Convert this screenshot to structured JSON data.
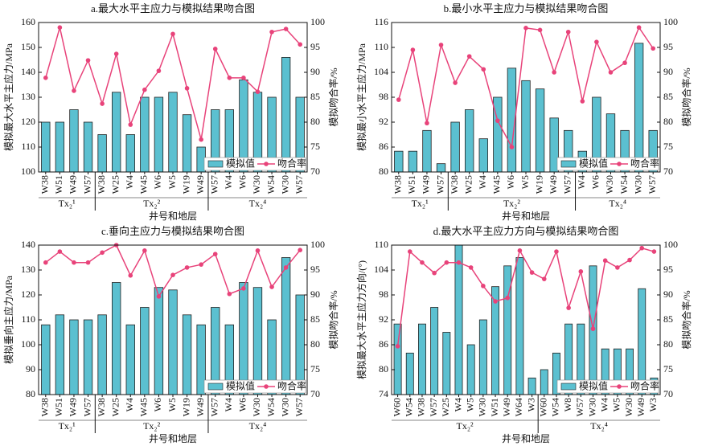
{
  "chart_data": [
    {
      "type": "bar",
      "title": "a.最大水平主应力与模拟结果吻合图",
      "x_label": "井号和地层",
      "y_label": "模拟最大水平主应力/MPa",
      "y2_label": "模拟吻合率/%",
      "groups": [
        {
          "label": "Tx₂¹",
          "categories": [
            "W38",
            "W51",
            "W49",
            "W57"
          ]
        },
        {
          "label": "Tx₂²",
          "categories": [
            "W38",
            "W25",
            "W4",
            "W45",
            "W6",
            "W5",
            "W19",
            "W49"
          ]
        },
        {
          "label": "Tx₂⁴",
          "categories": [
            "W57",
            "W4",
            "W6",
            "W30",
            "W54",
            "W30",
            "W57"
          ]
        }
      ],
      "series": [
        {
          "name": "模拟值",
          "color": "#5bc0d0",
          "values": [
            120,
            120,
            125,
            120,
            115,
            132,
            115,
            130,
            130,
            132,
            123,
            110,
            125,
            125,
            137,
            132,
            130,
            146,
            130
          ]
        },
        {
          "name": "吻合率",
          "color": "#e8437a",
          "type": "line",
          "axis": "y2",
          "values": [
            88.9,
            99,
            86.3,
            92.4,
            83.7,
            93.7,
            79.5,
            86.5,
            90.3,
            97.7,
            86.8,
            76.5,
            94.7,
            88.9,
            88.9,
            86.1,
            98.1,
            98.7,
            95.6
          ]
        }
      ],
      "ylim": [
        100,
        160
      ],
      "yticks": [
        100,
        110,
        120,
        130,
        140,
        150,
        160
      ],
      "y2lim": [
        70,
        100
      ],
      "y2ticks": [
        70,
        75,
        80,
        85,
        90,
        95,
        100
      ],
      "legend": "lower right"
    },
    {
      "type": "bar",
      "title": "b.最小水平主应力与模拟结果吻合图",
      "x_label": "井号和地层",
      "y_label": "模拟最小水平主应力/MPa",
      "y2_label": "模拟吻合率/%",
      "groups": [
        {
          "label": "Tx₂¹",
          "categories": [
            "W38",
            "W51",
            "W49",
            "W57"
          ]
        },
        {
          "label": "Tx₂²",
          "categories": [
            "W38",
            "W25",
            "W4",
            "W45",
            "W6",
            "W5",
            "W19",
            "W49",
            "W57"
          ]
        },
        {
          "label": "Tx₂⁴",
          "categories": [
            "W4",
            "W6",
            "W30",
            "W54",
            "W30",
            "W57"
          ]
        }
      ],
      "series": [
        {
          "name": "模拟值",
          "color": "#5bc0d0",
          "values": [
            85,
            85,
            90,
            82,
            92,
            95,
            88,
            98,
            105,
            102,
            100,
            93,
            90,
            85,
            98,
            94,
            90,
            111,
            90
          ]
        },
        {
          "name": "吻合率",
          "color": "#e8437a",
          "type": "line",
          "axis": "y2",
          "values": [
            84.5,
            94.5,
            79.8,
            95.5,
            87.9,
            93.2,
            90.6,
            80.3,
            75,
            98.9,
            98.5,
            90,
            98.1,
            84.2,
            96.1,
            90,
            91.9,
            99,
            94.8
          ]
        }
      ],
      "ylim": [
        80,
        116
      ],
      "yticks": [
        80,
        86,
        92,
        98,
        104,
        110,
        116
      ],
      "y2lim": [
        70,
        100
      ],
      "y2ticks": [
        70,
        75,
        80,
        85,
        90,
        95,
        100
      ],
      "legend": "lower right"
    },
    {
      "type": "bar",
      "title": "c.垂向主应力与模拟结果吻合图",
      "x_label": "井号和地层",
      "y_label": "模拟垂向主应力/MPa",
      "y2_label": "模拟吻合率/%",
      "groups": [
        {
          "label": "Tx₂¹",
          "categories": [
            "W38",
            "W51",
            "W49",
            "W57"
          ]
        },
        {
          "label": "Tx₂²",
          "categories": [
            "W38",
            "W25",
            "W4",
            "W45",
            "W6",
            "W5",
            "W19",
            "W49"
          ]
        },
        {
          "label": "Tx₂⁴",
          "categories": [
            "W57",
            "W4",
            "W6",
            "W30",
            "W54",
            "W30",
            "W57"
          ]
        }
      ],
      "series": [
        {
          "name": "模拟值",
          "color": "#5bc0d0",
          "values": [
            108,
            112,
            110,
            110,
            112,
            125,
            108,
            115,
            123,
            122,
            112,
            108,
            115,
            108,
            125,
            123,
            110,
            135,
            120
          ]
        },
        {
          "name": "吻合率",
          "color": "#e8437a",
          "type": "line",
          "axis": "y2",
          "values": [
            96.5,
            98.7,
            96.5,
            96.5,
            98.5,
            100,
            93.9,
            98.9,
            89.7,
            94,
            95.5,
            96.1,
            98.2,
            90.2,
            91.3,
            98.9,
            91.6,
            95.5,
            99
          ]
        }
      ],
      "ylim": [
        80,
        140
      ],
      "yticks": [
        80,
        90,
        100,
        110,
        120,
        130,
        140
      ],
      "y2lim": [
        70,
        100
      ],
      "y2ticks": [
        70,
        75,
        80,
        85,
        90,
        95,
        100
      ],
      "legend": "lower right"
    },
    {
      "type": "bar",
      "title": "d.最大水平主应力方向与模拟结果吻合图",
      "x_label": "井号和地层",
      "y_label": "模拟最大水平主应力方向/(°)",
      "y2_label": "模拟吻合率/%",
      "groups": [
        {
          "label": "Tx₂²",
          "categories": [
            "W60",
            "W54",
            "W38",
            "W57",
            "W25",
            "W4",
            "W5",
            "W30",
            "W51",
            "W49",
            "W64",
            "W3"
          ]
        },
        {
          "label": "Tx₂⁴",
          "categories": [
            "W60",
            "W54",
            "W8",
            "W57",
            "W30",
            "W4",
            "W5",
            "W30",
            "W49",
            "W3"
          ]
        }
      ],
      "series": [
        {
          "name": "模拟值",
          "color": "#5bc0d0",
          "values": [
            91,
            84,
            91,
            95,
            89,
            110,
            86,
            92,
            100,
            105,
            107,
            78,
            80,
            84,
            91,
            91,
            105,
            85,
            85,
            85,
            99.5,
            78
          ]
        },
        {
          "name": "吻合率",
          "color": "#e8437a",
          "type": "line",
          "axis": "y2",
          "values": [
            79.7,
            98.7,
            96.5,
            94.4,
            96.5,
            96.5,
            95.5,
            91.8,
            88.7,
            89.4,
            98.9,
            94.5,
            93.2,
            98.7,
            87.4,
            94.7,
            83.2,
            96.9,
            95.5,
            97,
            99.4,
            98.7
          ]
        }
      ],
      "ylim": [
        74,
        110
      ],
      "yticks": [
        74,
        80,
        86,
        92,
        98,
        104,
        110
      ],
      "y2lim": [
        70,
        100
      ],
      "y2ticks": [
        70,
        75,
        80,
        85,
        90,
        95,
        100
      ],
      "legend": "lower right"
    }
  ]
}
